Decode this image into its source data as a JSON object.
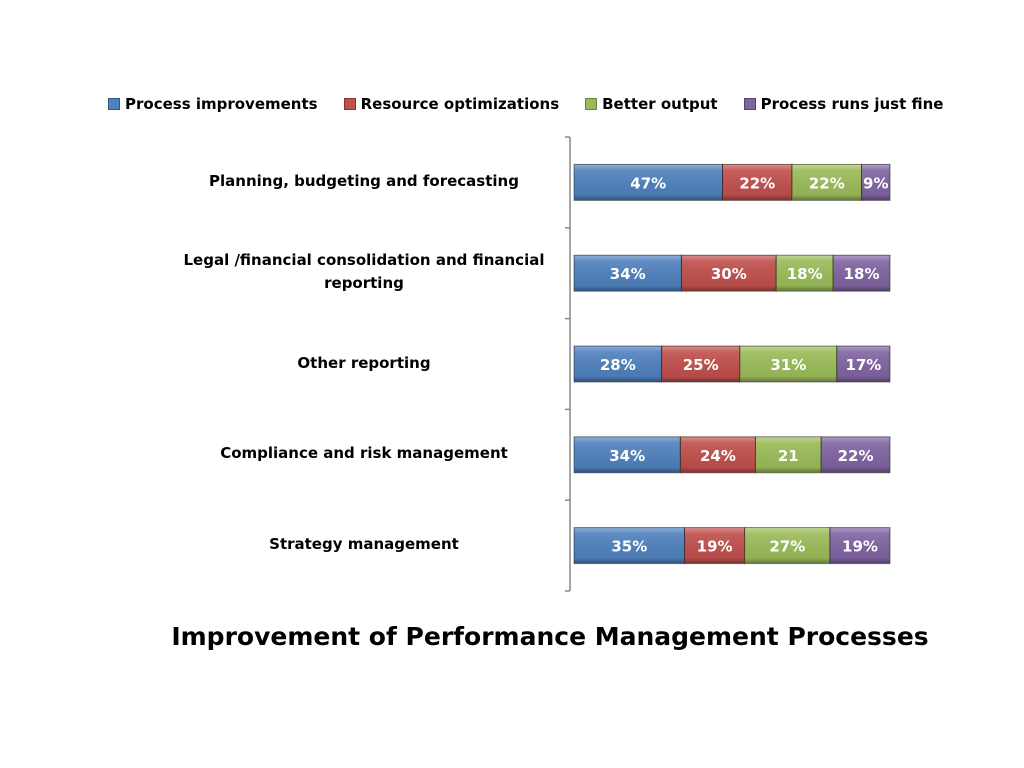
{
  "chart_data": {
    "type": "bar",
    "orientation": "horizontal",
    "stacked": "percent",
    "title": "Improvement of Performance Management Processes",
    "xlabel": "",
    "ylabel": "",
    "legend_position": "top",
    "grid": false,
    "categories": [
      "Planning, budgeting and forecasting",
      "Legal /financial consolidation and financial reporting",
      "Other reporting",
      "Compliance and risk management",
      "Strategy management"
    ],
    "series": [
      {
        "name": "Process improvements",
        "color": "#4F81BD",
        "values": [
          47,
          34,
          28,
          34,
          35
        ],
        "labels": [
          "47%",
          "34%",
          "28%",
          "34%",
          "35%"
        ]
      },
      {
        "name": "Resource optimizations",
        "color": "#C0504D",
        "values": [
          22,
          30,
          25,
          24,
          19
        ],
        "labels": [
          "22%",
          "30%",
          "25%",
          "24%",
          "19%"
        ]
      },
      {
        "name": "Better output",
        "color": "#9BBB59",
        "values": [
          22,
          18,
          31,
          21,
          27
        ],
        "labels": [
          "22%",
          "18%",
          "31%",
          "21",
          "27%"
        ]
      },
      {
        "name": "Process runs just fine",
        "color": "#8064A2",
        "values": [
          9,
          18,
          17,
          22,
          19
        ],
        "labels": [
          "9%",
          "18%",
          "17%",
          "22%",
          "19%"
        ]
      }
    ]
  }
}
